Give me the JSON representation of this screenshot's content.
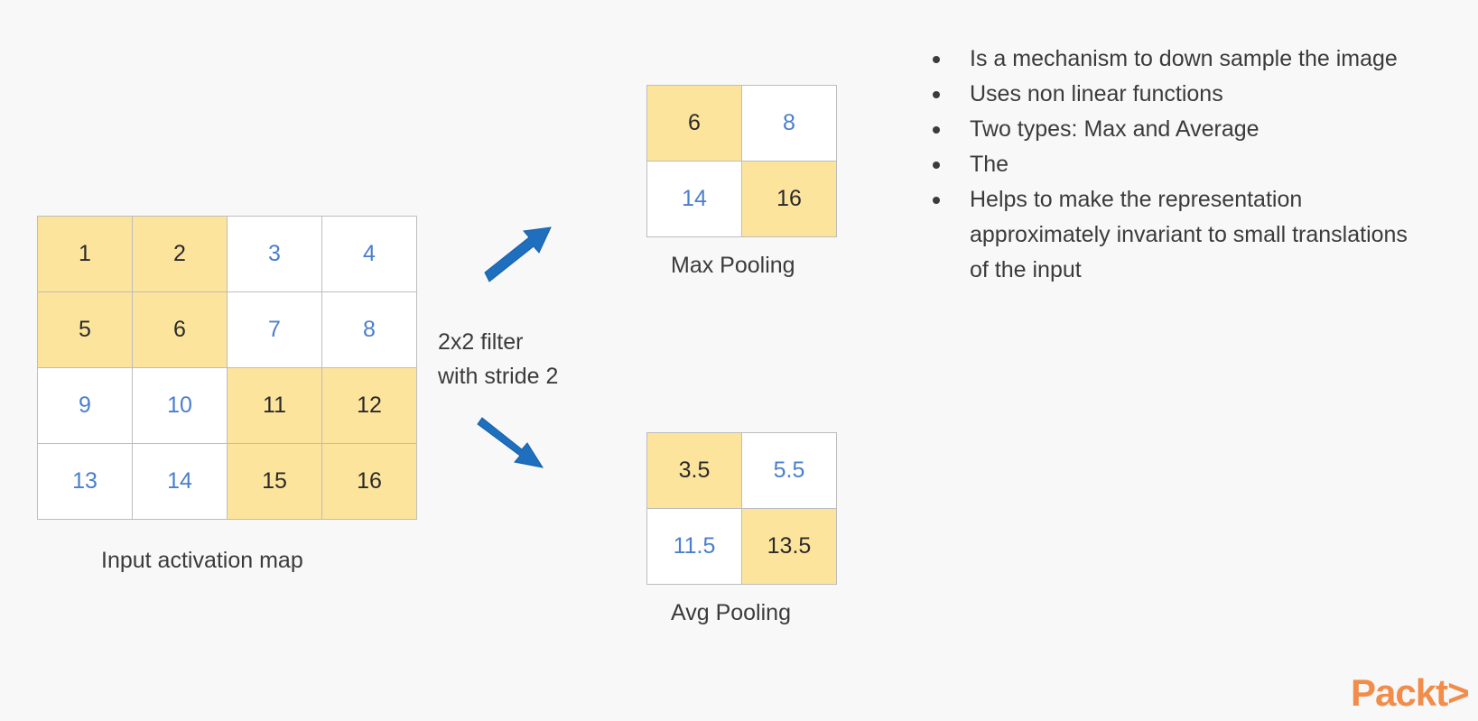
{
  "input_grid": {
    "cells": [
      [
        "1",
        "2",
        "3",
        "4"
      ],
      [
        "5",
        "6",
        "7",
        "8"
      ],
      [
        "9",
        "10",
        "11",
        "12"
      ],
      [
        "13",
        "14",
        "15",
        "16"
      ]
    ],
    "caption": "Input activation map"
  },
  "filter": {
    "line1": "2x2 filter",
    "line2": "with stride 2"
  },
  "max_pool": {
    "cells": [
      [
        "6",
        "8"
      ],
      [
        "14",
        "16"
      ]
    ],
    "caption": "Max Pooling"
  },
  "avg_pool": {
    "cells": [
      [
        "3.5",
        "5.5"
      ],
      [
        "11.5",
        "13.5"
      ]
    ],
    "caption": "Avg Pooling"
  },
  "bullets": [
    "Is a mechanism to down sample the image",
    "Uses non linear functions",
    "Two types: Max and Average",
    "The",
    "Helps to make the representation approximately invariant to small translations of the input"
  ],
  "logo": "Packt>",
  "colors": {
    "highlight": "#fde49d",
    "plain_text": "#4a7fcb",
    "arrow": "#1f6fbf",
    "logo": "#f28c4b"
  }
}
